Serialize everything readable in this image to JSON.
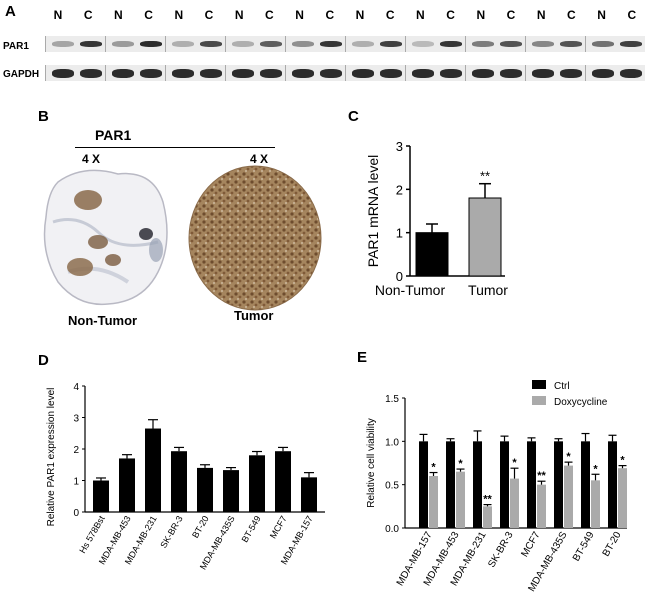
{
  "panels": {
    "a": "A",
    "b": "B",
    "c": "C",
    "d": "D",
    "e": "E"
  },
  "panel_a": {
    "lane_labels": [
      "N",
      "C",
      "N",
      "C",
      "N",
      "C",
      "N",
      "C",
      "N",
      "C",
      "N",
      "C",
      "N",
      "C",
      "N",
      "C",
      "N",
      "C",
      "N",
      "C"
    ],
    "row_labels": [
      "PAR1",
      "GAPDH"
    ]
  },
  "panel_b": {
    "title": "PAR1",
    "mag_left": "4 X",
    "mag_right": "4 X",
    "caption_left": "Non-Tumor",
    "caption_right": "Tumor"
  },
  "chart_data": [
    {
      "type": "bar",
      "id": "C",
      "categories": [
        "Non-Tumor",
        "Tumor"
      ],
      "values": [
        1.0,
        1.8
      ],
      "errors": [
        0.2,
        0.33
      ],
      "colors": [
        "#000000",
        "#aaaaaa"
      ],
      "significance": [
        "",
        "**"
      ],
      "ylabel": "PAR1 mRNA level",
      "ylim": [
        0,
        3
      ],
      "yticks": [
        "0",
        "1",
        "2",
        "3"
      ]
    },
    {
      "type": "bar",
      "id": "D",
      "categories": [
        "Hs 578Bst",
        "MDA-MB-453",
        "MDA-MB-231",
        "SK-BR-3",
        "BT-20",
        "MDA-MB-435S",
        "BT-549",
        "MCF7",
        "MDA-MB-157"
      ],
      "values": [
        1.0,
        1.7,
        2.65,
        1.93,
        1.4,
        1.33,
        1.8,
        1.93,
        1.1
      ],
      "errors": [
        0.08,
        0.12,
        0.28,
        0.12,
        0.1,
        0.08,
        0.12,
        0.12,
        0.15
      ],
      "ylabel": "Relative PAR1 expression level",
      "ylim": [
        0,
        4
      ],
      "yticks": [
        "0",
        "1",
        "2",
        "3",
        "4"
      ]
    },
    {
      "type": "bar",
      "id": "E",
      "categories": [
        "MDA-MB-157",
        "MDA-MB-453",
        "MDA-MB-231",
        "SK-BR-3",
        "MCF7",
        "MDA-MB-435S",
        "BT-549",
        "BT-20"
      ],
      "series": [
        {
          "name": "Ctrl",
          "color": "#000000",
          "values": [
            1.0,
            1.0,
            1.0,
            1.0,
            1.0,
            1.0,
            1.0,
            1.0
          ],
          "errors": [
            0.08,
            0.03,
            0.12,
            0.06,
            0.04,
            0.03,
            0.09,
            0.07
          ]
        },
        {
          "name": "Doxycycline",
          "color": "#aaaaaa",
          "values": [
            0.6,
            0.65,
            0.25,
            0.57,
            0.5,
            0.72,
            0.55,
            0.69
          ],
          "errors": [
            0.04,
            0.03,
            0.02,
            0.12,
            0.04,
            0.04,
            0.07,
            0.03
          ],
          "significance": [
            "*",
            "*",
            "**",
            "*",
            "**",
            "*",
            "*",
            "*"
          ]
        }
      ],
      "ylabel": "Relative cell viability",
      "ylim": [
        0,
        1.5
      ],
      "yticks": [
        "0.0",
        "0.5",
        "1.0",
        "1.5"
      ],
      "legend": "top-right"
    }
  ]
}
